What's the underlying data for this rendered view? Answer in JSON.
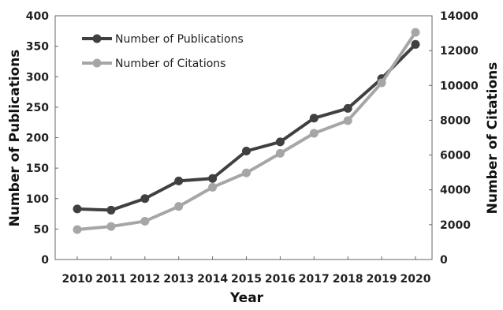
{
  "chart_data": {
    "type": "line",
    "xlabel": "Year",
    "ylabel_left": "Number of Publications",
    "ylabel_right": "Number of Citations",
    "categories": [
      "2010",
      "2011",
      "2012",
      "2013",
      "2014",
      "2015",
      "2016",
      "2017",
      "2018",
      "2019",
      "2020"
    ],
    "ylim_left": [
      0,
      400
    ],
    "yticks_left": [
      0,
      50,
      100,
      150,
      200,
      250,
      300,
      350,
      400
    ],
    "ylim_right": [
      0,
      14000
    ],
    "yticks_right": [
      0,
      2000,
      4000,
      6000,
      8000,
      10000,
      12000,
      14000
    ],
    "grid": false,
    "legend_position": "top-left",
    "series": [
      {
        "name": "Number of Publications",
        "axis": "left",
        "color": "#404040",
        "values": [
          83,
          81,
          100,
          129,
          133,
          178,
          193,
          232,
          248,
          297,
          353
        ]
      },
      {
        "name": "Number of Citations",
        "axis": "right",
        "color": "#a6a6a6",
        "values": [
          1720,
          1900,
          2200,
          3050,
          4150,
          4980,
          6100,
          7250,
          7980,
          10150,
          13050
        ]
      }
    ]
  }
}
